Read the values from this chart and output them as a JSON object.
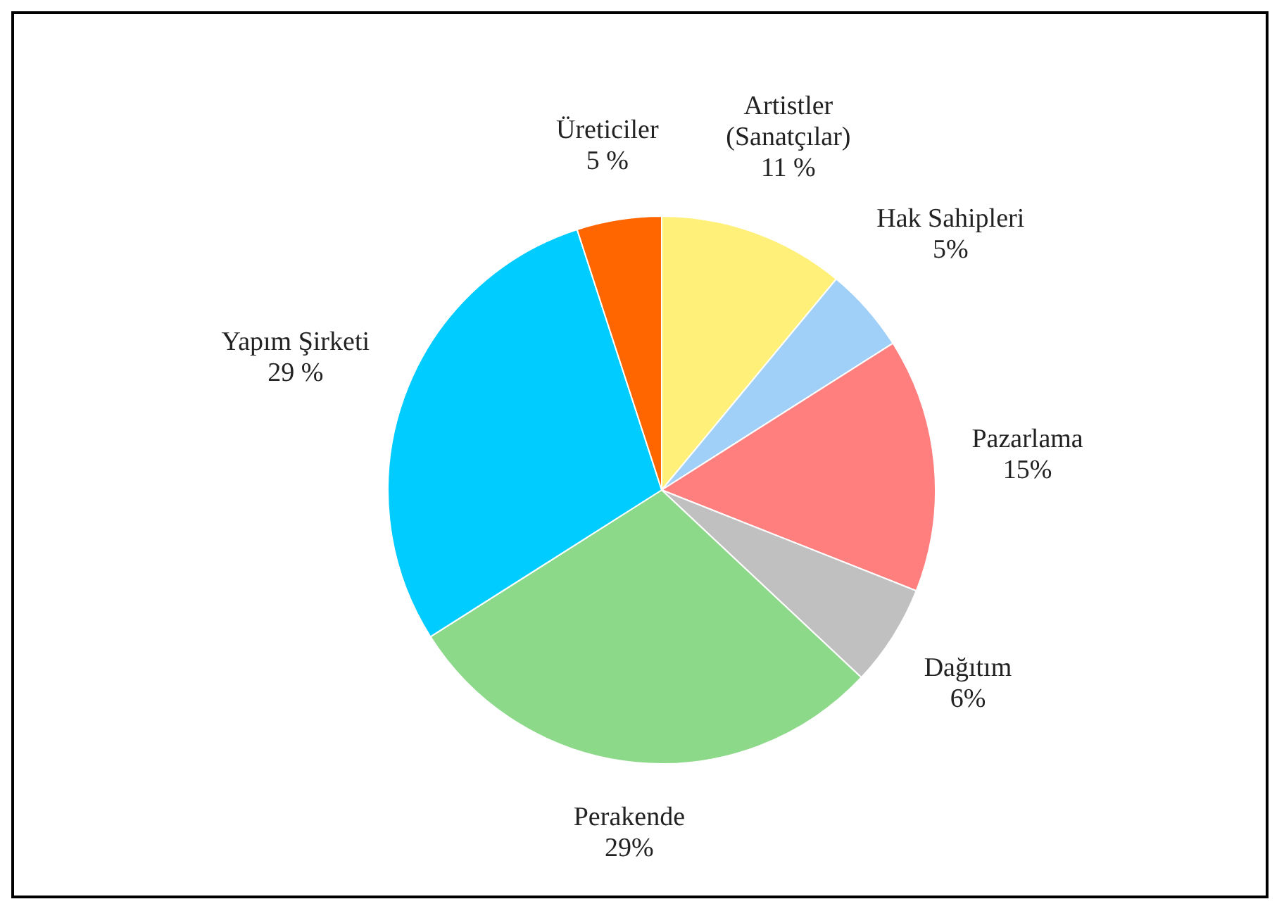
{
  "chart_data": {
    "type": "pie",
    "categories": [
      "Artistler (Sanatçılar)",
      "Hak Sahipleri",
      "Pazarlama",
      "Dağıtım",
      "Perakende",
      "Yapım Şirketi",
      "Üreticiler"
    ],
    "values": [
      11,
      5,
      15,
      6,
      29,
      29,
      5
    ],
    "value_labels": [
      "11 %",
      "5%",
      "15%",
      "6%",
      "29%",
      "29 %",
      "5 %"
    ],
    "colors": [
      "#fff07a",
      "#a0cff8",
      "#ff7f7f",
      "#c0c0c0",
      "#8dd98a",
      "#00ccff",
      "#ff6600"
    ],
    "legend": false
  }
}
